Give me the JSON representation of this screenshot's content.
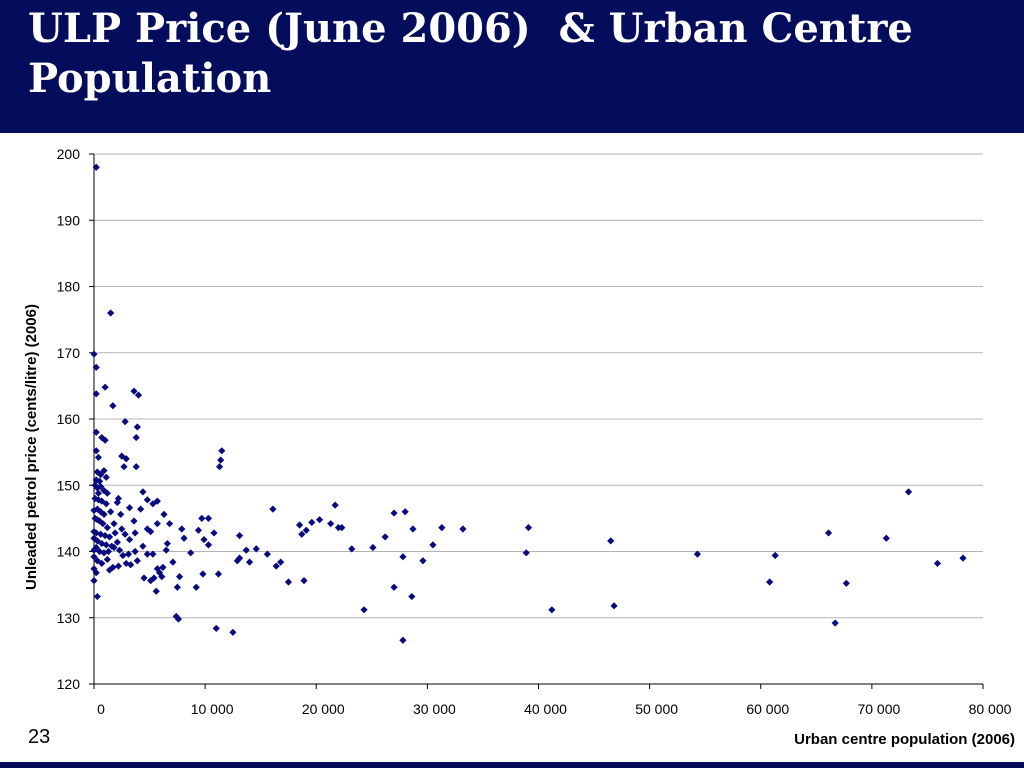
{
  "slide": {
    "title": "ULP Price (June 2006)  & Urban Centre\nPopulation",
    "number": "23"
  },
  "colors": {
    "header": "#040c5c",
    "point": "#0a0a80",
    "grid": "#b4b4b4"
  },
  "chart_data": {
    "type": "scatter",
    "xlabel": "Urban centre population (2006)",
    "ylabel": "Unleaded petrol price (cents/litre) (2006)",
    "xlim": [
      0,
      80000
    ],
    "ylim": [
      120,
      200
    ],
    "xticks": [
      0,
      10000,
      20000,
      30000,
      40000,
      50000,
      60000,
      70000,
      80000
    ],
    "xtick_labels": [
      "0",
      "10 000",
      "20 000",
      "30 000",
      "40 000",
      "50 000",
      "60 000",
      "70 000",
      "80 000"
    ],
    "yticks": [
      120,
      130,
      140,
      150,
      160,
      170,
      180,
      190,
      200
    ],
    "ytick_labels": [
      "120",
      "130",
      "140",
      "150",
      "160",
      "170",
      "180",
      "190",
      "200"
    ],
    "grid": "horizontal",
    "points": [
      [
        200,
        198
      ],
      [
        1500,
        176
      ],
      [
        0,
        169.8
      ],
      [
        200,
        167.8
      ],
      [
        1000,
        164.8
      ],
      [
        200,
        163.8
      ],
      [
        3600,
        164.2
      ],
      [
        4000,
        163.6
      ],
      [
        1700,
        162
      ],
      [
        2800,
        159.6
      ],
      [
        3900,
        158.8
      ],
      [
        200,
        158
      ],
      [
        700,
        157.2
      ],
      [
        1000,
        156.8
      ],
      [
        3800,
        157.2
      ],
      [
        11500,
        155.2
      ],
      [
        11400,
        153.8
      ],
      [
        11300,
        152.8
      ],
      [
        200,
        155.2
      ],
      [
        400,
        154.2
      ],
      [
        2500,
        154.4
      ],
      [
        2900,
        154
      ],
      [
        2700,
        152.8
      ],
      [
        3800,
        152.8
      ],
      [
        300,
        152
      ],
      [
        600,
        151.6
      ],
      [
        900,
        152.2
      ],
      [
        1100,
        151.2
      ],
      [
        500,
        150.6
      ],
      [
        200,
        150.8
      ],
      [
        100,
        150
      ],
      [
        300,
        149.6
      ],
      [
        600,
        149.8
      ],
      [
        900,
        149.2
      ],
      [
        1200,
        148.8
      ],
      [
        400,
        148.8
      ],
      [
        100,
        148
      ],
      [
        400,
        147.8
      ],
      [
        700,
        147.6
      ],
      [
        1100,
        147.2
      ],
      [
        2200,
        148
      ],
      [
        4400,
        149
      ],
      [
        4800,
        147.8
      ],
      [
        5300,
        147.2
      ],
      [
        5700,
        147.6
      ],
      [
        3200,
        146.6
      ],
      [
        2100,
        147.4
      ],
      [
        0,
        146.2
      ],
      [
        300,
        146.4
      ],
      [
        600,
        146
      ],
      [
        900,
        145.6
      ],
      [
        1500,
        146
      ],
      [
        2400,
        145.6
      ],
      [
        4200,
        146.4
      ],
      [
        6300,
        145.6
      ],
      [
        16100,
        146.4
      ],
      [
        21700,
        147
      ],
      [
        27000,
        145.8
      ],
      [
        28000,
        146
      ],
      [
        73300,
        149
      ],
      [
        100,
        145
      ],
      [
        300,
        144.8
      ],
      [
        500,
        144.6
      ],
      [
        800,
        144.2
      ],
      [
        1200,
        143.6
      ],
      [
        1800,
        144.2
      ],
      [
        2500,
        143.4
      ],
      [
        3600,
        144.6
      ],
      [
        4800,
        143.4
      ],
      [
        5700,
        144.2
      ],
      [
        6800,
        144.2
      ],
      [
        9700,
        145
      ],
      [
        10300,
        145
      ],
      [
        19600,
        144.4
      ],
      [
        18500,
        144
      ],
      [
        20300,
        144.8
      ],
      [
        21300,
        144.2
      ],
      [
        22000,
        143.6
      ],
      [
        28700,
        143.4
      ],
      [
        31300,
        143.6
      ],
      [
        33200,
        143.4
      ],
      [
        39100,
        143.6
      ],
      [
        0,
        143
      ],
      [
        200,
        142.8
      ],
      [
        600,
        142.6
      ],
      [
        1000,
        142.4
      ],
      [
        1400,
        142.2
      ],
      [
        1900,
        142.8
      ],
      [
        2800,
        142.6
      ],
      [
        3700,
        142.8
      ],
      [
        5100,
        143
      ],
      [
        7900,
        143.4
      ],
      [
        9400,
        143.2
      ],
      [
        10800,
        142.8
      ],
      [
        13100,
        142.4
      ],
      [
        18700,
        142.6
      ],
      [
        19100,
        143.2
      ],
      [
        22300,
        143.6
      ],
      [
        26200,
        142.2
      ],
      [
        66100,
        142.8
      ],
      [
        71300,
        142
      ],
      [
        46500,
        141.6
      ],
      [
        30500,
        141
      ],
      [
        0,
        142
      ],
      [
        300,
        141.6
      ],
      [
        700,
        141.2
      ],
      [
        1100,
        141
      ],
      [
        1600,
        140.8
      ],
      [
        2100,
        141.4
      ],
      [
        3200,
        141.8
      ],
      [
        4400,
        140.8
      ],
      [
        6600,
        141.2
      ],
      [
        8100,
        142
      ],
      [
        10300,
        141
      ],
      [
        14600,
        140.4
      ],
      [
        23200,
        140.4
      ],
      [
        25100,
        140.6
      ],
      [
        9900,
        141.8
      ],
      [
        0,
        140.2
      ],
      [
        200,
        140.6
      ],
      [
        500,
        140
      ],
      [
        900,
        139.8
      ],
      [
        1300,
        140
      ],
      [
        1800,
        140.6
      ],
      [
        2300,
        140.2
      ],
      [
        2600,
        139.4
      ],
      [
        3100,
        139.6
      ],
      [
        3700,
        140
      ],
      [
        4800,
        139.6
      ],
      [
        5300,
        139.6
      ],
      [
        6500,
        140.2
      ],
      [
        8700,
        139.8
      ],
      [
        13700,
        140.2
      ],
      [
        15600,
        139.6
      ],
      [
        27800,
        139.2
      ],
      [
        29600,
        138.6
      ],
      [
        38900,
        139.8
      ],
      [
        54300,
        139.6
      ],
      [
        61300,
        139.4
      ],
      [
        78200,
        139
      ],
      [
        0,
        139.2
      ],
      [
        300,
        138.6
      ],
      [
        700,
        138.2
      ],
      [
        1200,
        138.8
      ],
      [
        1700,
        137.6
      ],
      [
        2900,
        138.2
      ],
      [
        3900,
        138.6
      ],
      [
        5700,
        137.4
      ],
      [
        5900,
        136.8
      ],
      [
        6200,
        137.6
      ],
      [
        7100,
        138.4
      ],
      [
        12900,
        138.6
      ],
      [
        13100,
        139
      ],
      [
        14000,
        138.4
      ],
      [
        16400,
        137.8
      ],
      [
        16800,
        138.4
      ],
      [
        75900,
        138.2
      ],
      [
        0,
        137.4
      ],
      [
        200,
        136.8
      ],
      [
        1400,
        137.2
      ],
      [
        2200,
        137.8
      ],
      [
        3300,
        138
      ],
      [
        4500,
        136
      ],
      [
        5100,
        135.6
      ],
      [
        5400,
        136
      ],
      [
        6100,
        136.2
      ],
      [
        7700,
        136.2
      ],
      [
        9800,
        136.6
      ],
      [
        11200,
        136.6
      ],
      [
        17500,
        135.4
      ],
      [
        18900,
        135.6
      ],
      [
        27000,
        134.6
      ],
      [
        60800,
        135.4
      ],
      [
        67700,
        135.2
      ],
      [
        0,
        135.6
      ],
      [
        5600,
        134
      ],
      [
        7500,
        134.6
      ],
      [
        9200,
        134.6
      ],
      [
        300,
        133.2
      ],
      [
        28600,
        133.2
      ],
      [
        24300,
        131.2
      ],
      [
        41200,
        131.2
      ],
      [
        46800,
        131.8
      ],
      [
        7400,
        130.2
      ],
      [
        7600,
        129.8
      ],
      [
        66700,
        129.2
      ],
      [
        11000,
        128.4
      ],
      [
        12500,
        127.8
      ],
      [
        27800,
        126.6
      ]
    ]
  }
}
